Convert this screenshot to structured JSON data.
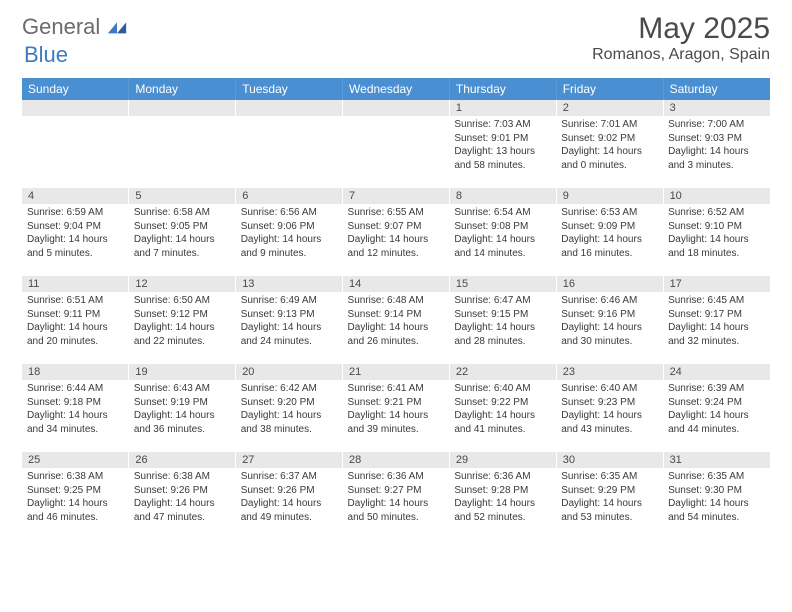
{
  "logo": {
    "general": "General",
    "blue": "Blue"
  },
  "title": "May 2025",
  "location": "Romanos, Aragon, Spain",
  "colors": {
    "header_bg": "#4a8fd1",
    "header_text": "#ffffff",
    "daynum_bg": "#e8e8e8",
    "body_text": "#3a3a3a",
    "logo_gray": "#6b6b6b",
    "logo_blue": "#3d7bbf"
  },
  "daynames": [
    "Sunday",
    "Monday",
    "Tuesday",
    "Wednesday",
    "Thursday",
    "Friday",
    "Saturday"
  ],
  "weeks": [
    {
      "nums": [
        "",
        "",
        "",
        "",
        "1",
        "2",
        "3"
      ],
      "cells": [
        null,
        null,
        null,
        null,
        {
          "sunrise": "Sunrise: 7:03 AM",
          "sunset": "Sunset: 9:01 PM",
          "day1": "Daylight: 13 hours",
          "day2": "and 58 minutes."
        },
        {
          "sunrise": "Sunrise: 7:01 AM",
          "sunset": "Sunset: 9:02 PM",
          "day1": "Daylight: 14 hours",
          "day2": "and 0 minutes."
        },
        {
          "sunrise": "Sunrise: 7:00 AM",
          "sunset": "Sunset: 9:03 PM",
          "day1": "Daylight: 14 hours",
          "day2": "and 3 minutes."
        }
      ]
    },
    {
      "nums": [
        "4",
        "5",
        "6",
        "7",
        "8",
        "9",
        "10"
      ],
      "cells": [
        {
          "sunrise": "Sunrise: 6:59 AM",
          "sunset": "Sunset: 9:04 PM",
          "day1": "Daylight: 14 hours",
          "day2": "and 5 minutes."
        },
        {
          "sunrise": "Sunrise: 6:58 AM",
          "sunset": "Sunset: 9:05 PM",
          "day1": "Daylight: 14 hours",
          "day2": "and 7 minutes."
        },
        {
          "sunrise": "Sunrise: 6:56 AM",
          "sunset": "Sunset: 9:06 PM",
          "day1": "Daylight: 14 hours",
          "day2": "and 9 minutes."
        },
        {
          "sunrise": "Sunrise: 6:55 AM",
          "sunset": "Sunset: 9:07 PM",
          "day1": "Daylight: 14 hours",
          "day2": "and 12 minutes."
        },
        {
          "sunrise": "Sunrise: 6:54 AM",
          "sunset": "Sunset: 9:08 PM",
          "day1": "Daylight: 14 hours",
          "day2": "and 14 minutes."
        },
        {
          "sunrise": "Sunrise: 6:53 AM",
          "sunset": "Sunset: 9:09 PM",
          "day1": "Daylight: 14 hours",
          "day2": "and 16 minutes."
        },
        {
          "sunrise": "Sunrise: 6:52 AM",
          "sunset": "Sunset: 9:10 PM",
          "day1": "Daylight: 14 hours",
          "day2": "and 18 minutes."
        }
      ]
    },
    {
      "nums": [
        "11",
        "12",
        "13",
        "14",
        "15",
        "16",
        "17"
      ],
      "cells": [
        {
          "sunrise": "Sunrise: 6:51 AM",
          "sunset": "Sunset: 9:11 PM",
          "day1": "Daylight: 14 hours",
          "day2": "and 20 minutes."
        },
        {
          "sunrise": "Sunrise: 6:50 AM",
          "sunset": "Sunset: 9:12 PM",
          "day1": "Daylight: 14 hours",
          "day2": "and 22 minutes."
        },
        {
          "sunrise": "Sunrise: 6:49 AM",
          "sunset": "Sunset: 9:13 PM",
          "day1": "Daylight: 14 hours",
          "day2": "and 24 minutes."
        },
        {
          "sunrise": "Sunrise: 6:48 AM",
          "sunset": "Sunset: 9:14 PM",
          "day1": "Daylight: 14 hours",
          "day2": "and 26 minutes."
        },
        {
          "sunrise": "Sunrise: 6:47 AM",
          "sunset": "Sunset: 9:15 PM",
          "day1": "Daylight: 14 hours",
          "day2": "and 28 minutes."
        },
        {
          "sunrise": "Sunrise: 6:46 AM",
          "sunset": "Sunset: 9:16 PM",
          "day1": "Daylight: 14 hours",
          "day2": "and 30 minutes."
        },
        {
          "sunrise": "Sunrise: 6:45 AM",
          "sunset": "Sunset: 9:17 PM",
          "day1": "Daylight: 14 hours",
          "day2": "and 32 minutes."
        }
      ]
    },
    {
      "nums": [
        "18",
        "19",
        "20",
        "21",
        "22",
        "23",
        "24"
      ],
      "cells": [
        {
          "sunrise": "Sunrise: 6:44 AM",
          "sunset": "Sunset: 9:18 PM",
          "day1": "Daylight: 14 hours",
          "day2": "and 34 minutes."
        },
        {
          "sunrise": "Sunrise: 6:43 AM",
          "sunset": "Sunset: 9:19 PM",
          "day1": "Daylight: 14 hours",
          "day2": "and 36 minutes."
        },
        {
          "sunrise": "Sunrise: 6:42 AM",
          "sunset": "Sunset: 9:20 PM",
          "day1": "Daylight: 14 hours",
          "day2": "and 38 minutes."
        },
        {
          "sunrise": "Sunrise: 6:41 AM",
          "sunset": "Sunset: 9:21 PM",
          "day1": "Daylight: 14 hours",
          "day2": "and 39 minutes."
        },
        {
          "sunrise": "Sunrise: 6:40 AM",
          "sunset": "Sunset: 9:22 PM",
          "day1": "Daylight: 14 hours",
          "day2": "and 41 minutes."
        },
        {
          "sunrise": "Sunrise: 6:40 AM",
          "sunset": "Sunset: 9:23 PM",
          "day1": "Daylight: 14 hours",
          "day2": "and 43 minutes."
        },
        {
          "sunrise": "Sunrise: 6:39 AM",
          "sunset": "Sunset: 9:24 PM",
          "day1": "Daylight: 14 hours",
          "day2": "and 44 minutes."
        }
      ]
    },
    {
      "nums": [
        "25",
        "26",
        "27",
        "28",
        "29",
        "30",
        "31"
      ],
      "cells": [
        {
          "sunrise": "Sunrise: 6:38 AM",
          "sunset": "Sunset: 9:25 PM",
          "day1": "Daylight: 14 hours",
          "day2": "and 46 minutes."
        },
        {
          "sunrise": "Sunrise: 6:38 AM",
          "sunset": "Sunset: 9:26 PM",
          "day1": "Daylight: 14 hours",
          "day2": "and 47 minutes."
        },
        {
          "sunrise": "Sunrise: 6:37 AM",
          "sunset": "Sunset: 9:26 PM",
          "day1": "Daylight: 14 hours",
          "day2": "and 49 minutes."
        },
        {
          "sunrise": "Sunrise: 6:36 AM",
          "sunset": "Sunset: 9:27 PM",
          "day1": "Daylight: 14 hours",
          "day2": "and 50 minutes."
        },
        {
          "sunrise": "Sunrise: 6:36 AM",
          "sunset": "Sunset: 9:28 PM",
          "day1": "Daylight: 14 hours",
          "day2": "and 52 minutes."
        },
        {
          "sunrise": "Sunrise: 6:35 AM",
          "sunset": "Sunset: 9:29 PM",
          "day1": "Daylight: 14 hours",
          "day2": "and 53 minutes."
        },
        {
          "sunrise": "Sunrise: 6:35 AM",
          "sunset": "Sunset: 9:30 PM",
          "day1": "Daylight: 14 hours",
          "day2": "and 54 minutes."
        }
      ]
    }
  ]
}
